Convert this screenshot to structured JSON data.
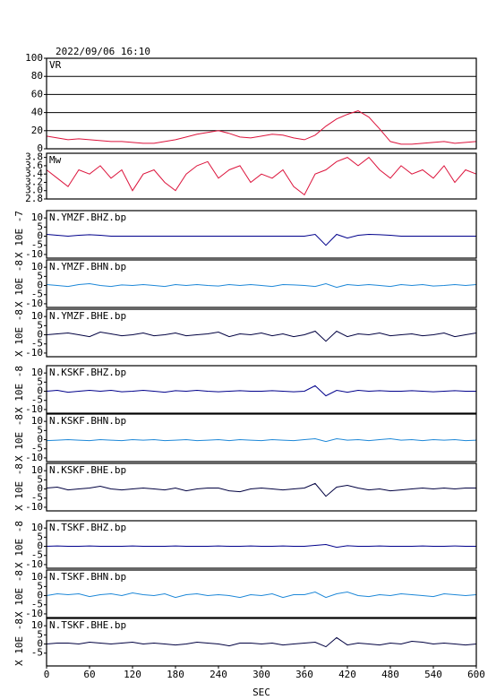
{
  "chart_data": [
    {
      "type": "line",
      "title": "2022/09/06 16:10",
      "label": "VR",
      "color": "#dc143c",
      "grid": true,
      "x": [
        0,
        15,
        30,
        45,
        60,
        75,
        90,
        105,
        120,
        135,
        150,
        165,
        180,
        195,
        210,
        225,
        240,
        255,
        270,
        285,
        300,
        315,
        330,
        345,
        360,
        375,
        390,
        405,
        420,
        435,
        450,
        465,
        480,
        495,
        510,
        525,
        540,
        555,
        570,
        585,
        600
      ],
      "values": [
        14,
        12,
        10,
        11,
        10,
        9,
        8,
        8,
        7,
        6,
        6,
        8,
        10,
        13,
        16,
        18,
        20,
        17,
        13,
        12,
        14,
        16,
        15,
        12,
        10,
        15,
        25,
        33,
        38,
        42,
        35,
        22,
        8,
        5,
        5,
        6,
        7,
        8,
        6,
        7,
        8
      ],
      "xlim": [
        0,
        600
      ],
      "ylim": [
        0,
        100
      ],
      "yticks": [
        0,
        20,
        40,
        60,
        80,
        100
      ]
    },
    {
      "type": "line",
      "label": "Mw",
      "color": "#dc143c",
      "x": [
        0,
        15,
        30,
        45,
        60,
        75,
        90,
        105,
        120,
        135,
        150,
        165,
        180,
        195,
        210,
        225,
        240,
        255,
        270,
        285,
        300,
        315,
        330,
        345,
        360,
        375,
        390,
        405,
        420,
        435,
        450,
        465,
        480,
        495,
        510,
        525,
        540,
        555,
        570,
        585,
        600
      ],
      "values": [
        3.5,
        3.3,
        3.1,
        3.5,
        3.4,
        3.6,
        3.3,
        3.5,
        3.0,
        3.4,
        3.5,
        3.2,
        3.0,
        3.4,
        3.6,
        3.7,
        3.3,
        3.5,
        3.6,
        3.2,
        3.4,
        3.3,
        3.5,
        3.1,
        2.9,
        3.4,
        3.5,
        3.7,
        3.8,
        3.6,
        3.8,
        3.5,
        3.3,
        3.6,
        3.4,
        3.5,
        3.3,
        3.6,
        3.2,
        3.5,
        3.4
      ],
      "xlim": [
        0,
        600
      ],
      "ylim": [
        2.8,
        3.9
      ],
      "yticks": [
        2.8,
        {
          "value": 3,
          "label": "3.0"
        },
        3.2,
        3.4,
        3.6,
        3.8
      ]
    },
    {
      "type": "line",
      "label": "N.YMZF.BHZ.bp",
      "ylabel": "X 10E -7",
      "color": "#00008b",
      "x": [
        0,
        15,
        30,
        45,
        60,
        75,
        90,
        105,
        120,
        135,
        150,
        165,
        180,
        195,
        210,
        225,
        240,
        255,
        270,
        285,
        300,
        315,
        330,
        345,
        360,
        375,
        390,
        405,
        420,
        435,
        450,
        465,
        480,
        495,
        510,
        525,
        540,
        555,
        570,
        585,
        600
      ],
      "values": [
        1,
        0.5,
        0,
        0.5,
        0.8,
        0.5,
        0,
        0,
        0,
        0,
        0,
        0,
        0,
        0,
        0,
        0,
        0,
        0,
        0,
        0,
        0,
        0,
        0,
        0,
        0,
        1,
        -5,
        1,
        -1,
        0.5,
        1,
        0.8,
        0.5,
        0,
        0,
        0,
        0,
        0,
        0,
        0,
        0
      ],
      "xlim": [
        0,
        600
      ],
      "ylim": [
        -12,
        14
      ],
      "yticks": [
        -10,
        -5,
        0,
        5,
        10
      ]
    },
    {
      "type": "line",
      "label": "N.YMZF.BHN.bp",
      "ylabel": "X 10E -8",
      "color": "#1e88d8",
      "x": [
        0,
        15,
        30,
        45,
        60,
        75,
        90,
        105,
        120,
        135,
        150,
        165,
        180,
        195,
        210,
        225,
        240,
        255,
        270,
        285,
        300,
        315,
        330,
        345,
        360,
        375,
        390,
        405,
        420,
        435,
        450,
        465,
        480,
        495,
        510,
        525,
        540,
        555,
        570,
        585,
        600
      ],
      "values": [
        0.5,
        0,
        -0.5,
        0.5,
        1,
        0,
        -0.5,
        0.3,
        0,
        0.5,
        0,
        -0.5,
        0.5,
        0,
        0.5,
        0,
        -0.3,
        0.5,
        0,
        0.5,
        0,
        -0.5,
        0.5,
        0.3,
        0,
        -0.5,
        1,
        -1,
        0.5,
        0,
        0.5,
        0,
        -0.5,
        0.5,
        0,
        0.5,
        -0.3,
        0,
        0.5,
        0,
        0.5
      ],
      "xlim": [
        0,
        600
      ],
      "ylim": [
        -12,
        14
      ],
      "yticks": [
        -10,
        -5,
        0,
        5,
        10
      ]
    },
    {
      "type": "line",
      "label": "N.YMZF.BHE.bp",
      "ylabel": "X 10E -8",
      "color": "#000040",
      "x": [
        0,
        15,
        30,
        45,
        60,
        75,
        90,
        105,
        120,
        135,
        150,
        165,
        180,
        195,
        210,
        225,
        240,
        255,
        270,
        285,
        300,
        315,
        330,
        345,
        360,
        375,
        390,
        405,
        420,
        435,
        450,
        465,
        480,
        495,
        510,
        525,
        540,
        555,
        570,
        585,
        600
      ],
      "values": [
        0,
        0.5,
        1,
        0,
        -1,
        1.5,
        0.5,
        -0.5,
        0,
        1,
        -0.5,
        0,
        1,
        -0.5,
        0,
        0.5,
        1.5,
        -1,
        0.5,
        0,
        1,
        -0.5,
        0.5,
        -1,
        0,
        2,
        -3.5,
        2,
        -1,
        0.5,
        0,
        1,
        -0.5,
        0,
        0.5,
        -0.5,
        0,
        1,
        -1,
        0,
        1
      ],
      "xlim": [
        0,
        600
      ],
      "ylim": [
        -12,
        14
      ],
      "yticks": [
        -10,
        -5,
        0,
        5,
        10
      ]
    },
    {
      "type": "line",
      "label": "N.KSKF.BHZ.bp",
      "ylabel": "X 10E -8",
      "color": "#00008b",
      "x": [
        0,
        15,
        30,
        45,
        60,
        75,
        90,
        105,
        120,
        135,
        150,
        165,
        180,
        195,
        210,
        225,
        240,
        255,
        270,
        285,
        300,
        315,
        330,
        345,
        360,
        375,
        390,
        405,
        420,
        435,
        450,
        465,
        480,
        495,
        510,
        525,
        540,
        555,
        570,
        585,
        600
      ],
      "values": [
        0,
        0.5,
        -0.5,
        0,
        0.5,
        0,
        0.5,
        -0.3,
        0,
        0.5,
        0,
        -0.5,
        0.3,
        0,
        0.5,
        0,
        -0.3,
        0,
        0.3,
        0,
        0,
        0.3,
        0,
        -0.3,
        0,
        3,
        -2.5,
        0.5,
        -0.5,
        0.5,
        0,
        0.3,
        0,
        0,
        0.3,
        0,
        -0.3,
        0,
        0.3,
        0,
        0
      ],
      "xlim": [
        0,
        600
      ],
      "ylim": [
        -12,
        14
      ],
      "yticks": [
        -10,
        -5,
        0,
        5,
        10
      ]
    },
    {
      "type": "line",
      "label": "N.KSKF.BHN.bp",
      "ylabel": "X 10E -8",
      "color": "#1e88d8",
      "x": [
        0,
        15,
        30,
        45,
        60,
        75,
        90,
        105,
        120,
        135,
        150,
        165,
        180,
        195,
        210,
        225,
        240,
        255,
        270,
        285,
        300,
        315,
        330,
        345,
        360,
        375,
        390,
        405,
        420,
        435,
        450,
        465,
        480,
        495,
        510,
        525,
        540,
        555,
        570,
        585,
        600
      ],
      "values": [
        -0.5,
        -0.3,
        0,
        -0.3,
        -0.5,
        0,
        -0.3,
        -0.5,
        0,
        -0.3,
        0,
        -0.5,
        -0.3,
        0,
        -0.5,
        -0.3,
        0,
        -0.5,
        0,
        -0.3,
        -0.5,
        0,
        -0.3,
        -0.5,
        0,
        0.5,
        -1,
        0.5,
        -0.3,
        0,
        -0.5,
        0,
        0.5,
        -0.3,
        0,
        -0.5,
        0,
        -0.3,
        0,
        -0.5,
        -0.3
      ],
      "xlim": [
        0,
        600
      ],
      "ylim": [
        -12,
        14
      ],
      "yticks": [
        -10,
        -5,
        0,
        5,
        10
      ]
    },
    {
      "type": "line",
      "label": "N.KSKF.BHE.bp",
      "ylabel": "X 10E -8",
      "color": "#000040",
      "x": [
        0,
        15,
        30,
        45,
        60,
        75,
        90,
        105,
        120,
        135,
        150,
        165,
        180,
        195,
        210,
        225,
        240,
        255,
        270,
        285,
        300,
        315,
        330,
        345,
        360,
        375,
        390,
        405,
        420,
        435,
        450,
        465,
        480,
        495,
        510,
        525,
        540,
        555,
        570,
        585,
        600
      ],
      "values": [
        0.5,
        1,
        -0.5,
        0,
        0.5,
        1.5,
        0,
        -0.5,
        0,
        0.5,
        0,
        -0.5,
        0.5,
        -1,
        0,
        0.5,
        0.5,
        -1,
        -1.5,
        0,
        0.5,
        0,
        -0.5,
        0,
        0.5,
        3,
        -4,
        1,
        2,
        0.5,
        -0.5,
        0,
        -1,
        -0.5,
        0,
        0.5,
        0,
        0.5,
        0,
        0.5,
        0.5
      ],
      "xlim": [
        0,
        600
      ],
      "ylim": [
        -12,
        14
      ],
      "yticks": [
        -10,
        -5,
        0,
        5,
        10
      ]
    },
    {
      "type": "line",
      "label": "N.TSKF.BHZ.bp",
      "ylabel": "X 10E -8",
      "color": "#00008b",
      "x": [
        0,
        15,
        30,
        45,
        60,
        75,
        90,
        105,
        120,
        135,
        150,
        165,
        180,
        195,
        210,
        225,
        240,
        255,
        270,
        285,
        300,
        315,
        330,
        345,
        360,
        375,
        390,
        405,
        420,
        435,
        450,
        465,
        480,
        495,
        510,
        525,
        540,
        555,
        570,
        585,
        600
      ],
      "values": [
        0,
        0.2,
        0,
        0,
        0.2,
        0,
        0,
        0,
        0.2,
        0,
        0,
        0,
        0.2,
        0,
        0,
        0,
        0.2,
        0,
        0,
        0.2,
        0,
        0,
        0.2,
        0,
        0,
        0.5,
        1,
        -0.5,
        0.3,
        0,
        0,
        0.2,
        0,
        0,
        0,
        0.2,
        0,
        0,
        0.2,
        0,
        0
      ],
      "xlim": [
        0,
        600
      ],
      "ylim": [
        -12,
        14
      ],
      "yticks": [
        -10,
        -5,
        0,
        5,
        10
      ]
    },
    {
      "type": "line",
      "label": "N.TSKF.BHN.bp",
      "ylabel": "X 10E -8",
      "color": "#1e88d8",
      "x": [
        0,
        15,
        30,
        45,
        60,
        75,
        90,
        105,
        120,
        135,
        150,
        165,
        180,
        195,
        210,
        225,
        240,
        255,
        270,
        285,
        300,
        315,
        330,
        345,
        360,
        375,
        390,
        405,
        420,
        435,
        450,
        465,
        480,
        495,
        510,
        525,
        540,
        555,
        570,
        585,
        600
      ],
      "values": [
        0,
        1,
        0.5,
        1,
        -0.5,
        0.5,
        1,
        0,
        1.5,
        0.5,
        0,
        1,
        -1,
        0.5,
        1,
        0,
        0.5,
        0,
        -1,
        0.5,
        0,
        1,
        -1,
        0.5,
        0.5,
        2,
        -1,
        1,
        2,
        0,
        -0.5,
        0.5,
        0,
        1,
        0.5,
        0,
        -0.5,
        1,
        0.5,
        0,
        0.5
      ],
      "xlim": [
        0,
        600
      ],
      "ylim": [
        -12,
        14
      ],
      "yticks": [
        -10,
        -5,
        0,
        5,
        10
      ]
    },
    {
      "type": "line",
      "label": "N.TSKF.BHE.bp",
      "ylabel": "X 10E -8",
      "color": "#000040",
      "xlabel": "SEC",
      "x": [
        0,
        15,
        30,
        45,
        60,
        75,
        90,
        105,
        120,
        135,
        150,
        165,
        180,
        195,
        210,
        225,
        240,
        255,
        270,
        285,
        300,
        315,
        330,
        345,
        360,
        375,
        390,
        405,
        420,
        435,
        450,
        465,
        480,
        495,
        510,
        525,
        540,
        555,
        570,
        585,
        600
      ],
      "values": [
        0,
        0.5,
        0.5,
        0,
        1,
        0.5,
        0,
        0.5,
        1,
        0,
        0.5,
        0,
        -0.5,
        0,
        1,
        0.5,
        0,
        -1,
        0.5,
        0.5,
        0,
        0.5,
        -0.5,
        0,
        0.5,
        1,
        -1.5,
        3.5,
        -0.5,
        0.5,
        0,
        -0.5,
        0.5,
        0,
        1.5,
        1,
        0,
        0.5,
        0,
        -0.5,
        0
      ],
      "xlim": [
        0,
        600
      ],
      "ylim": [
        -12,
        14
      ],
      "yticks": [
        -5,
        0,
        5,
        10
      ],
      "xticks": [
        0,
        60,
        120,
        180,
        240,
        300,
        360,
        420,
        480,
        540,
        600
      ]
    }
  ]
}
